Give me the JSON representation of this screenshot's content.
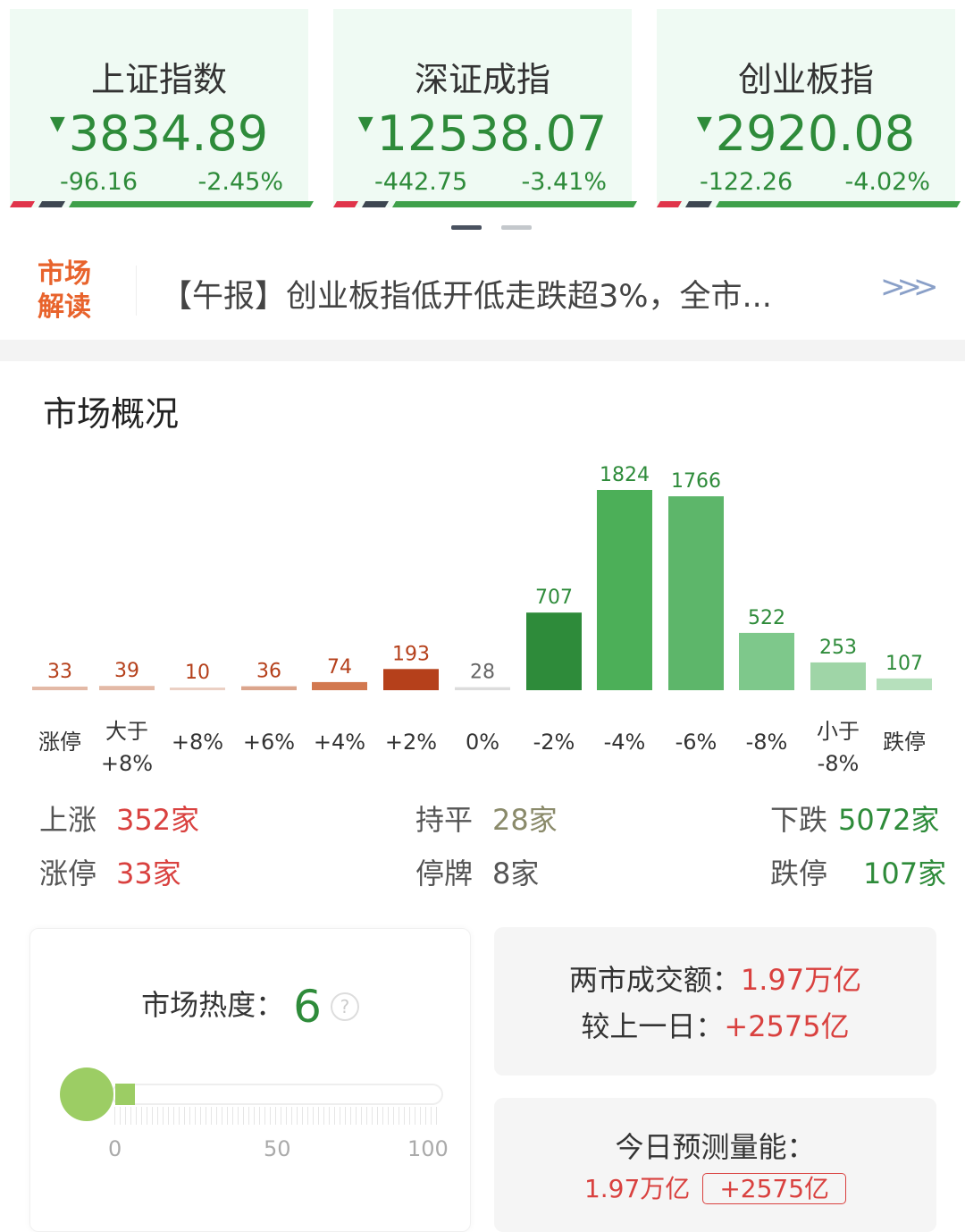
{
  "indices": [
    {
      "name": "上证指数",
      "price": "3834.89",
      "change": "-96.16",
      "pct": "-2.45%",
      "direction": "down"
    },
    {
      "name": "深证成指",
      "price": "12538.07",
      "change": "-442.75",
      "pct": "-3.41%",
      "direction": "down"
    },
    {
      "name": "创业板指",
      "price": "2920.08",
      "change": "-122.26",
      "pct": "-4.02%",
      "direction": "down"
    }
  ],
  "news": {
    "tag": "市场解读",
    "text": "【午报】创业板指低开低走跌超3%，全市...",
    "more": ">>>"
  },
  "overview": {
    "title": "市场概况"
  },
  "chart_data": {
    "type": "bar",
    "categories": [
      "涨停",
      "大于+8%",
      "+8%",
      "+6%",
      "+4%",
      "+2%",
      "0%",
      "-2%",
      "-4%",
      "-6%",
      "-8%",
      "小于-8%",
      "跌停"
    ],
    "category_lines": [
      [
        "涨停"
      ],
      [
        "大于",
        "+8%"
      ],
      [
        "+8%"
      ],
      [
        "+6%"
      ],
      [
        "+4%"
      ],
      [
        "+2%"
      ],
      [
        "0%"
      ],
      [
        "-2%"
      ],
      [
        "-4%"
      ],
      [
        "-6%"
      ],
      [
        "-8%"
      ],
      [
        "小于",
        "-8%"
      ],
      [
        "跌停"
      ]
    ],
    "values": [
      33,
      39,
      10,
      36,
      74,
      193,
      28,
      707,
      1824,
      1766,
      522,
      253,
      107
    ],
    "colors": [
      "#e3b9a6",
      "#e3b9a6",
      "#ebd0c4",
      "#dba58c",
      "#d2784f",
      "#b5401b",
      "#dcdcdc",
      "#2e8b3a",
      "#4caf58",
      "#5db66a",
      "#7ec88b",
      "#9fd5a7",
      "#b6e0bc"
    ],
    "label_colors": [
      "#b5401b",
      "#b5401b",
      "#b5401b",
      "#b5401b",
      "#b5401b",
      "#b5401b",
      "#666666",
      "#2e8b3a",
      "#2e8b3a",
      "#2e8b3a",
      "#2e8b3a",
      "#2e8b3a",
      "#2e8b3a"
    ]
  },
  "stats": {
    "up_label": "上涨",
    "up_value": "352家",
    "flat_label": "持平",
    "flat_value": "28家",
    "down_label": "下跌",
    "down_value": "5072家",
    "limit_up_label": "涨停",
    "limit_up_value": "33家",
    "suspended_label": "停牌",
    "suspended_value": "8家",
    "limit_down_label": "跌停",
    "limit_down_value": "107家"
  },
  "heat": {
    "label": "市场热度：",
    "value": "6",
    "level": 6,
    "help": "?",
    "ticks": [
      "0",
      "50",
      "100"
    ],
    "color": "#9ccd64"
  },
  "turnover": {
    "label": "两市成交额：",
    "value": "1.97万亿",
    "cmp_label": "较上一日：",
    "cmp_value": "+2575亿"
  },
  "forecast": {
    "label": "今日预测量能：",
    "value": "1.97万亿",
    "delta": "+2575亿"
  },
  "colors": {
    "up": "#d9413f",
    "down": "#2e8b3a",
    "flat": "#8a8a6a"
  }
}
